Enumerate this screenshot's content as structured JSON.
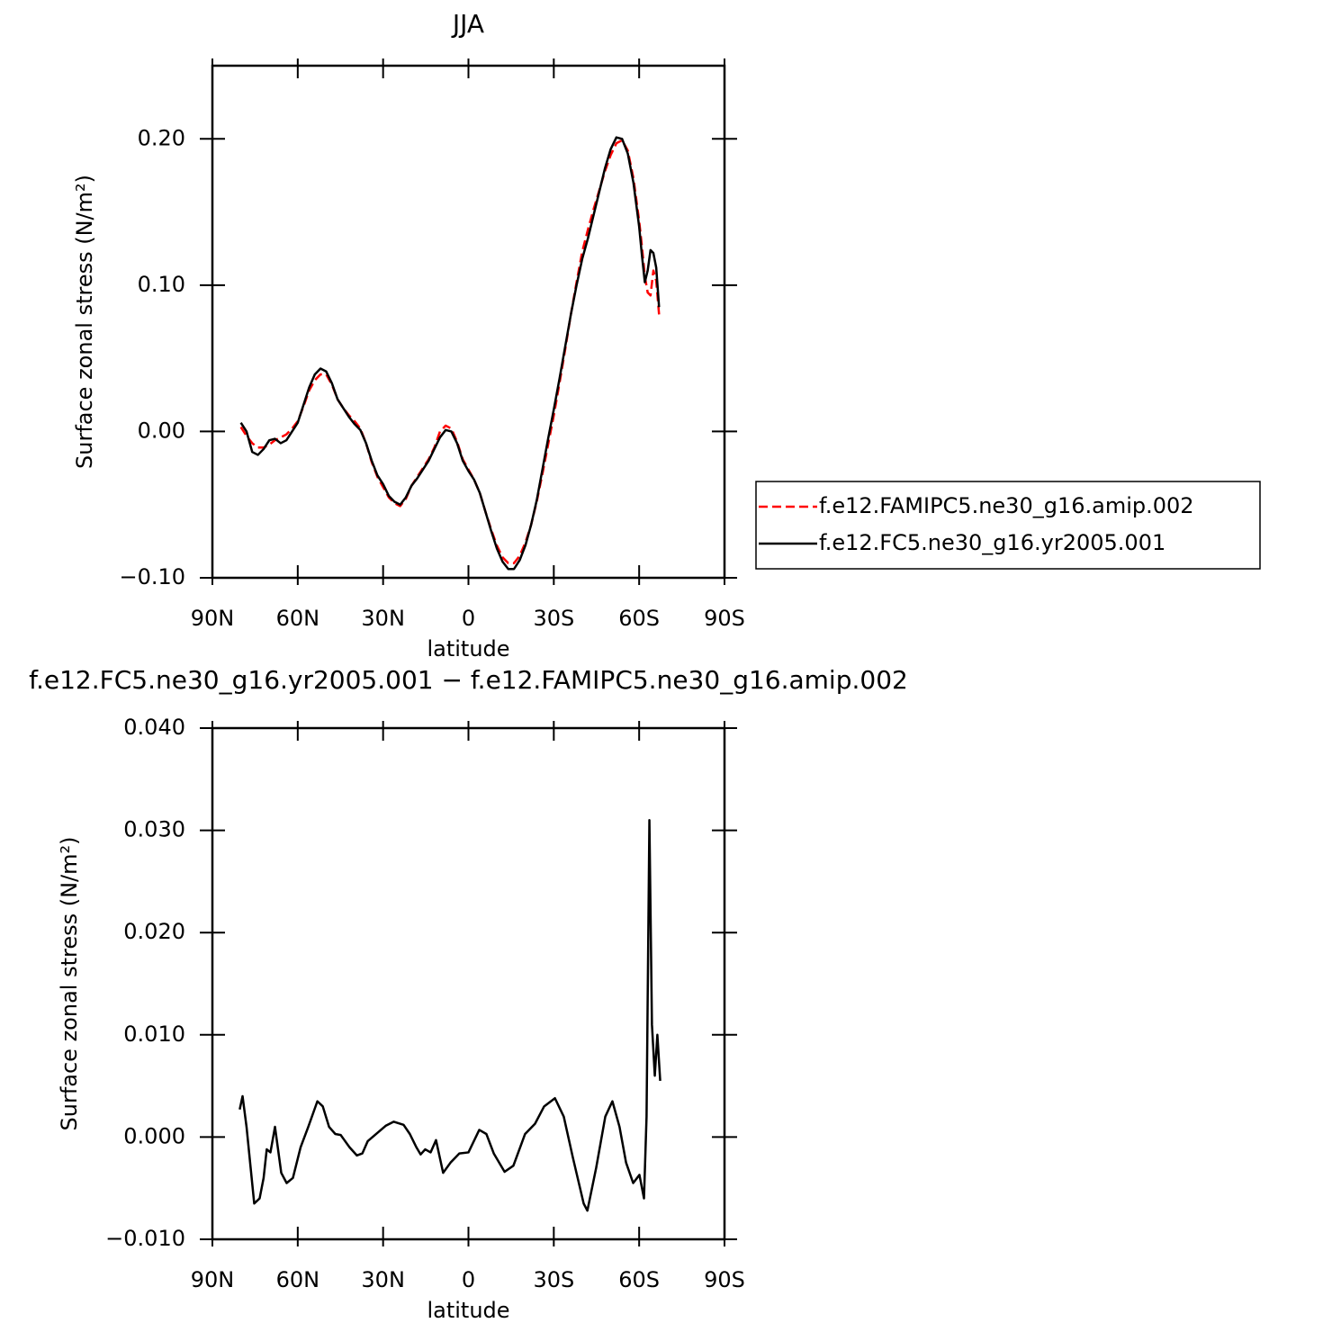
{
  "chart_data": [
    {
      "type": "line",
      "title": "JJA",
      "xlabel": "latitude",
      "ylabel": "Surface zonal stress (N/m²)",
      "x": [
        80,
        78,
        76,
        74,
        72,
        70,
        68,
        66,
        64,
        62,
        60,
        58,
        56,
        54,
        52,
        50,
        48,
        46,
        44,
        42,
        40,
        38,
        36,
        34,
        32,
        30,
        28,
        26,
        24,
        22,
        20,
        18,
        16,
        14,
        12,
        10,
        8,
        6,
        4,
        2,
        0,
        -2,
        -4,
        -6,
        -8,
        -10,
        -12,
        -14,
        -16,
        -18,
        -20,
        -22,
        -24,
        -26,
        -28,
        -30,
        -32,
        -34,
        -36,
        -38,
        -40,
        -42,
        -44,
        -46,
        -48,
        -50,
        -52,
        -54,
        -56,
        -58,
        -60,
        -61,
        -62,
        -63,
        -64,
        -65,
        -66,
        -67
      ],
      "xlim": [
        90,
        -90
      ],
      "xticks": [
        {
          "value": 90,
          "label": "90N"
        },
        {
          "value": 60,
          "label": "60N"
        },
        {
          "value": 30,
          "label": "30N"
        },
        0,
        {
          "value": -30,
          "label": "30S"
        },
        {
          "value": -60,
          "label": "60S"
        },
        {
          "value": -90,
          "label": "90S"
        }
      ],
      "ylim": [
        -0.1,
        0.25
      ],
      "yticks": [
        {
          "value": -0.1,
          "label": "−0.10"
        },
        {
          "value": 0,
          "label": "0.00"
        },
        {
          "value": 0.1,
          "label": "0.10"
        },
        {
          "value": 0.2,
          "label": "0.20"
        }
      ],
      "legend": "right",
      "series": [
        {
          "name": "f.e12.FAMIPC5.ne30_g16.amip.002",
          "color": "#ff0000",
          "dash": true,
          "values": [
            0.003,
            -0.003,
            -0.008,
            -0.011,
            -0.011,
            -0.009,
            -0.006,
            -0.004,
            -0.002,
            0.002,
            0.007,
            0.017,
            0.028,
            0.035,
            0.039,
            0.039,
            0.032,
            0.022,
            0.016,
            0.011,
            0.007,
            0.002,
            -0.008,
            -0.021,
            -0.031,
            -0.038,
            -0.045,
            -0.049,
            -0.051,
            -0.046,
            -0.037,
            -0.031,
            -0.025,
            -0.019,
            -0.011,
            0.0,
            0.004,
            0.002,
            -0.007,
            -0.019,
            -0.026,
            -0.033,
            -0.042,
            -0.055,
            -0.067,
            -0.078,
            -0.086,
            -0.09,
            -0.09,
            -0.085,
            -0.076,
            -0.064,
            -0.048,
            -0.029,
            -0.009,
            0.011,
            0.033,
            0.056,
            0.08,
            0.102,
            0.123,
            0.138,
            0.152,
            0.165,
            0.178,
            0.189,
            0.197,
            0.199,
            0.192,
            0.173,
            0.144,
            0.126,
            0.106,
            0.095,
            0.093,
            0.11,
            0.103,
            0.08
          ]
        },
        {
          "name": "f.e12.FC5.ne30_g16.yr2005.001",
          "color": "#000000",
          "dash": false,
          "values": [
            0.006,
            0.0,
            -0.014,
            -0.016,
            -0.012,
            -0.006,
            -0.005,
            -0.008,
            -0.006,
            0.0,
            0.006,
            0.018,
            0.03,
            0.039,
            0.043,
            0.041,
            0.033,
            0.022,
            0.016,
            0.01,
            0.005,
            0.001,
            -0.008,
            -0.02,
            -0.03,
            -0.036,
            -0.044,
            -0.048,
            -0.05,
            -0.045,
            -0.037,
            -0.032,
            -0.026,
            -0.02,
            -0.012,
            -0.004,
            0.001,
            0.0,
            -0.008,
            -0.02,
            -0.027,
            -0.033,
            -0.042,
            -0.055,
            -0.068,
            -0.08,
            -0.089,
            -0.094,
            -0.094,
            -0.088,
            -0.078,
            -0.064,
            -0.047,
            -0.026,
            -0.005,
            0.015,
            0.036,
            0.058,
            0.08,
            0.1,
            0.118,
            0.132,
            0.148,
            0.164,
            0.18,
            0.193,
            0.201,
            0.2,
            0.19,
            0.17,
            0.14,
            0.12,
            0.102,
            0.11,
            0.124,
            0.122,
            0.112,
            0.085
          ]
        }
      ]
    },
    {
      "type": "line",
      "title": "f.e12.FC5.ne30_g16.yr2005.001 − f.e12.FAMIPC5.ne30_g16.amip.002",
      "xlabel": "latitude",
      "ylabel": "Surface zonal stress (N/m²)",
      "x": [
        80.4,
        79.4,
        78,
        75.3,
        73.4,
        72,
        70.9,
        69.6,
        68,
        65.8,
        63.9,
        61.7,
        59,
        56.3,
        53.1,
        51.2,
        49,
        46.8,
        44.9,
        41.8,
        39.2,
        37.3,
        35.4,
        31.6,
        29.1,
        26.3,
        22.8,
        20.6,
        18.3,
        16.8,
        15.2,
        13.3,
        11.4,
        8.9,
        6.3,
        3.2,
        0,
        -3.8,
        -6.3,
        -8.9,
        -12.7,
        -15.8,
        -19.9,
        -23.4,
        -26.6,
        -30.4,
        -33.5,
        -36.7,
        -40.5,
        -41.8,
        -44.9,
        -48.1,
        -50.6,
        -53.1,
        -55.4,
        -57.9,
        -60.1,
        -61.7,
        -62.6,
        -63.6,
        -64.5,
        -65.5,
        -66.4,
        -67.4
      ],
      "xlim": [
        90,
        -90
      ],
      "xticks": [
        {
          "value": 90,
          "label": "90N"
        },
        {
          "value": 60,
          "label": "60N"
        },
        {
          "value": 30,
          "label": "30N"
        },
        0,
        {
          "value": -30,
          "label": "30S"
        },
        {
          "value": -60,
          "label": "60S"
        },
        {
          "value": -90,
          "label": "90S"
        }
      ],
      "ylim": [
        -0.01,
        0.04
      ],
      "yticks": [
        {
          "value": -0.01,
          "label": "−0.010"
        },
        {
          "value": 0,
          "label": "0.000"
        },
        {
          "value": 0.01,
          "label": "0.010"
        },
        {
          "value": 0.02,
          "label": "0.020"
        },
        {
          "value": 0.03,
          "label": "0.030"
        },
        {
          "value": 0.04,
          "label": "0.040"
        }
      ],
      "series": [
        {
          "color": "#000000",
          "dash": false,
          "values": [
            0.0027,
            0.004,
            0.001,
            -0.0065,
            -0.006,
            -0.004,
            -0.0012,
            -0.0015,
            0.001,
            -0.0035,
            -0.0045,
            -0.004,
            -0.001,
            0.001,
            0.0035,
            0.003,
            0.001,
            0.0003,
            0.0002,
            -0.001,
            -0.0018,
            -0.0016,
            -0.0004,
            0.0005,
            0.0011,
            0.0015,
            0.0012,
            0.0003,
            -0.001,
            -0.0017,
            -0.0012,
            -0.0015,
            -0.0003,
            -0.0035,
            -0.0025,
            -0.0016,
            -0.0015,
            0.0007,
            0.0003,
            -0.0016,
            -0.0034,
            -0.0028,
            0.0003,
            0.0013,
            0.003,
            0.0038,
            0.002,
            -0.002,
            -0.0065,
            -0.0072,
            -0.003,
            0.002,
            0.0035,
            0.001,
            -0.0025,
            -0.0045,
            -0.0037,
            -0.006,
            0.002,
            0.031,
            0.011,
            0.006,
            0.01,
            0.0055
          ]
        }
      ]
    }
  ]
}
